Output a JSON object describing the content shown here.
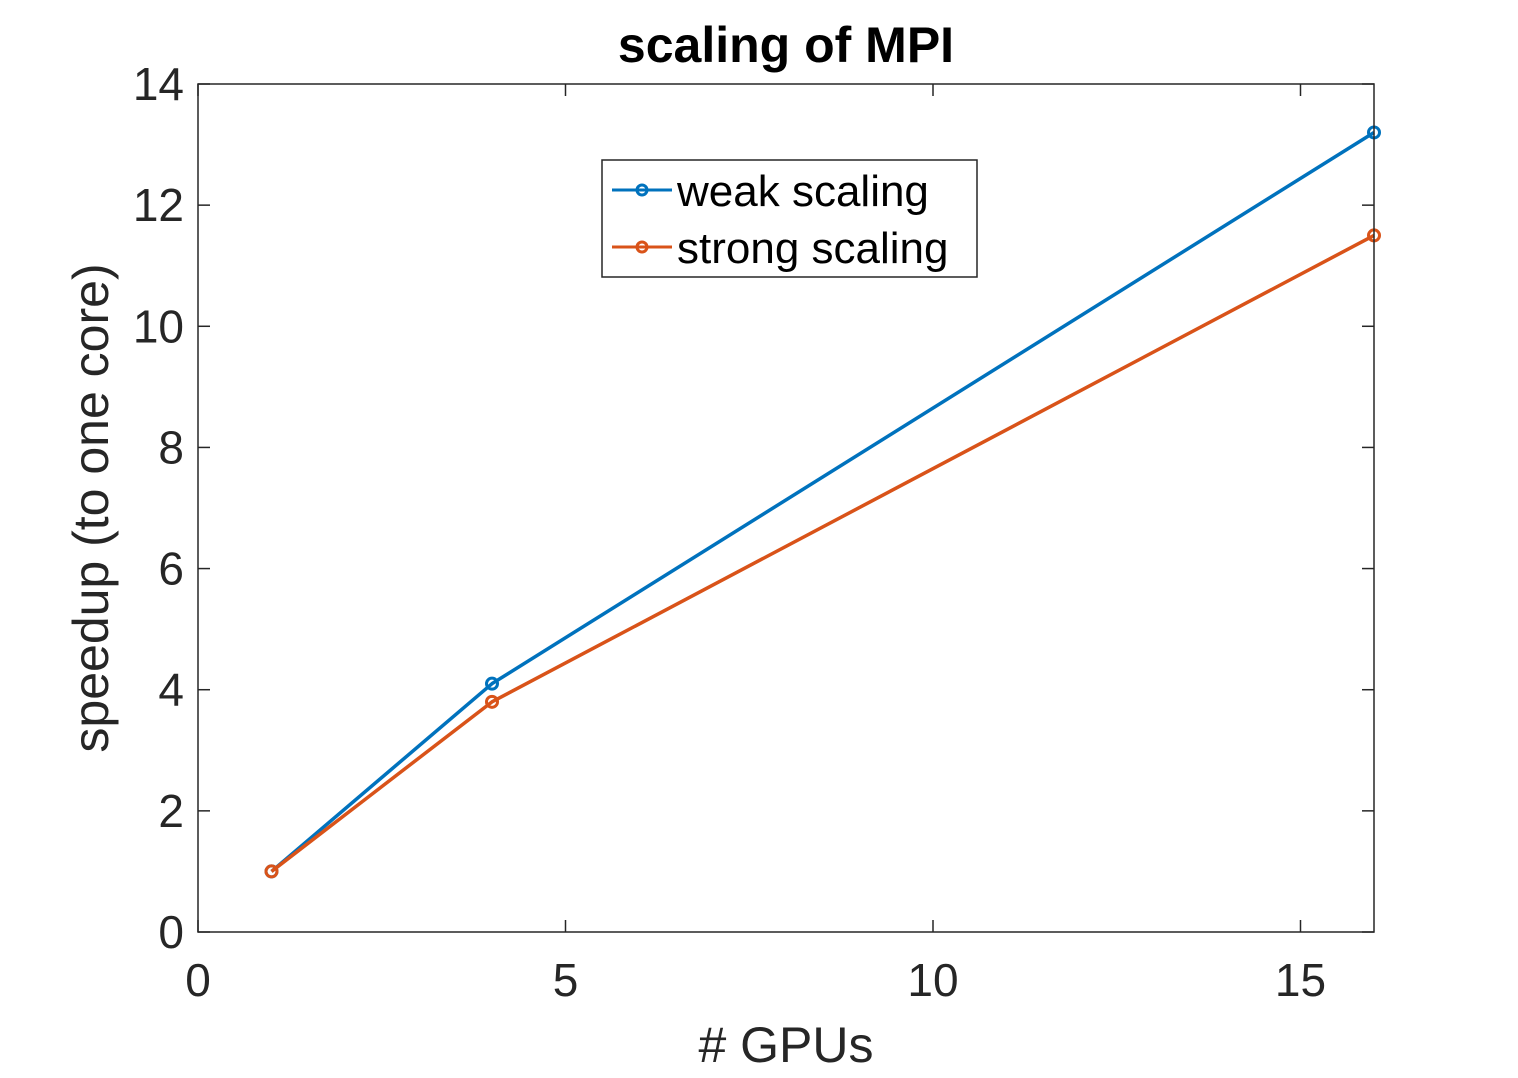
{
  "chart_data": {
    "type": "line",
    "title": "scaling of MPI",
    "xlabel": "# GPUs",
    "ylabel": "speedup (to one core)",
    "xlim": [
      0,
      16
    ],
    "ylim": [
      0,
      14
    ],
    "xticks": [
      0,
      5,
      10,
      15
    ],
    "yticks": [
      0,
      2,
      4,
      6,
      8,
      10,
      12,
      14
    ],
    "grid": false,
    "legend_position": "top-center",
    "series": [
      {
        "name": "weak scaling",
        "color": "#0072BD",
        "marker": "circle",
        "x": [
          1,
          4,
          16
        ],
        "y": [
          1.0,
          4.1,
          13.2
        ]
      },
      {
        "name": "strong scaling",
        "color": "#D95319",
        "marker": "circle",
        "x": [
          1,
          4,
          16
        ],
        "y": [
          1.0,
          3.8,
          11.5
        ]
      }
    ]
  }
}
